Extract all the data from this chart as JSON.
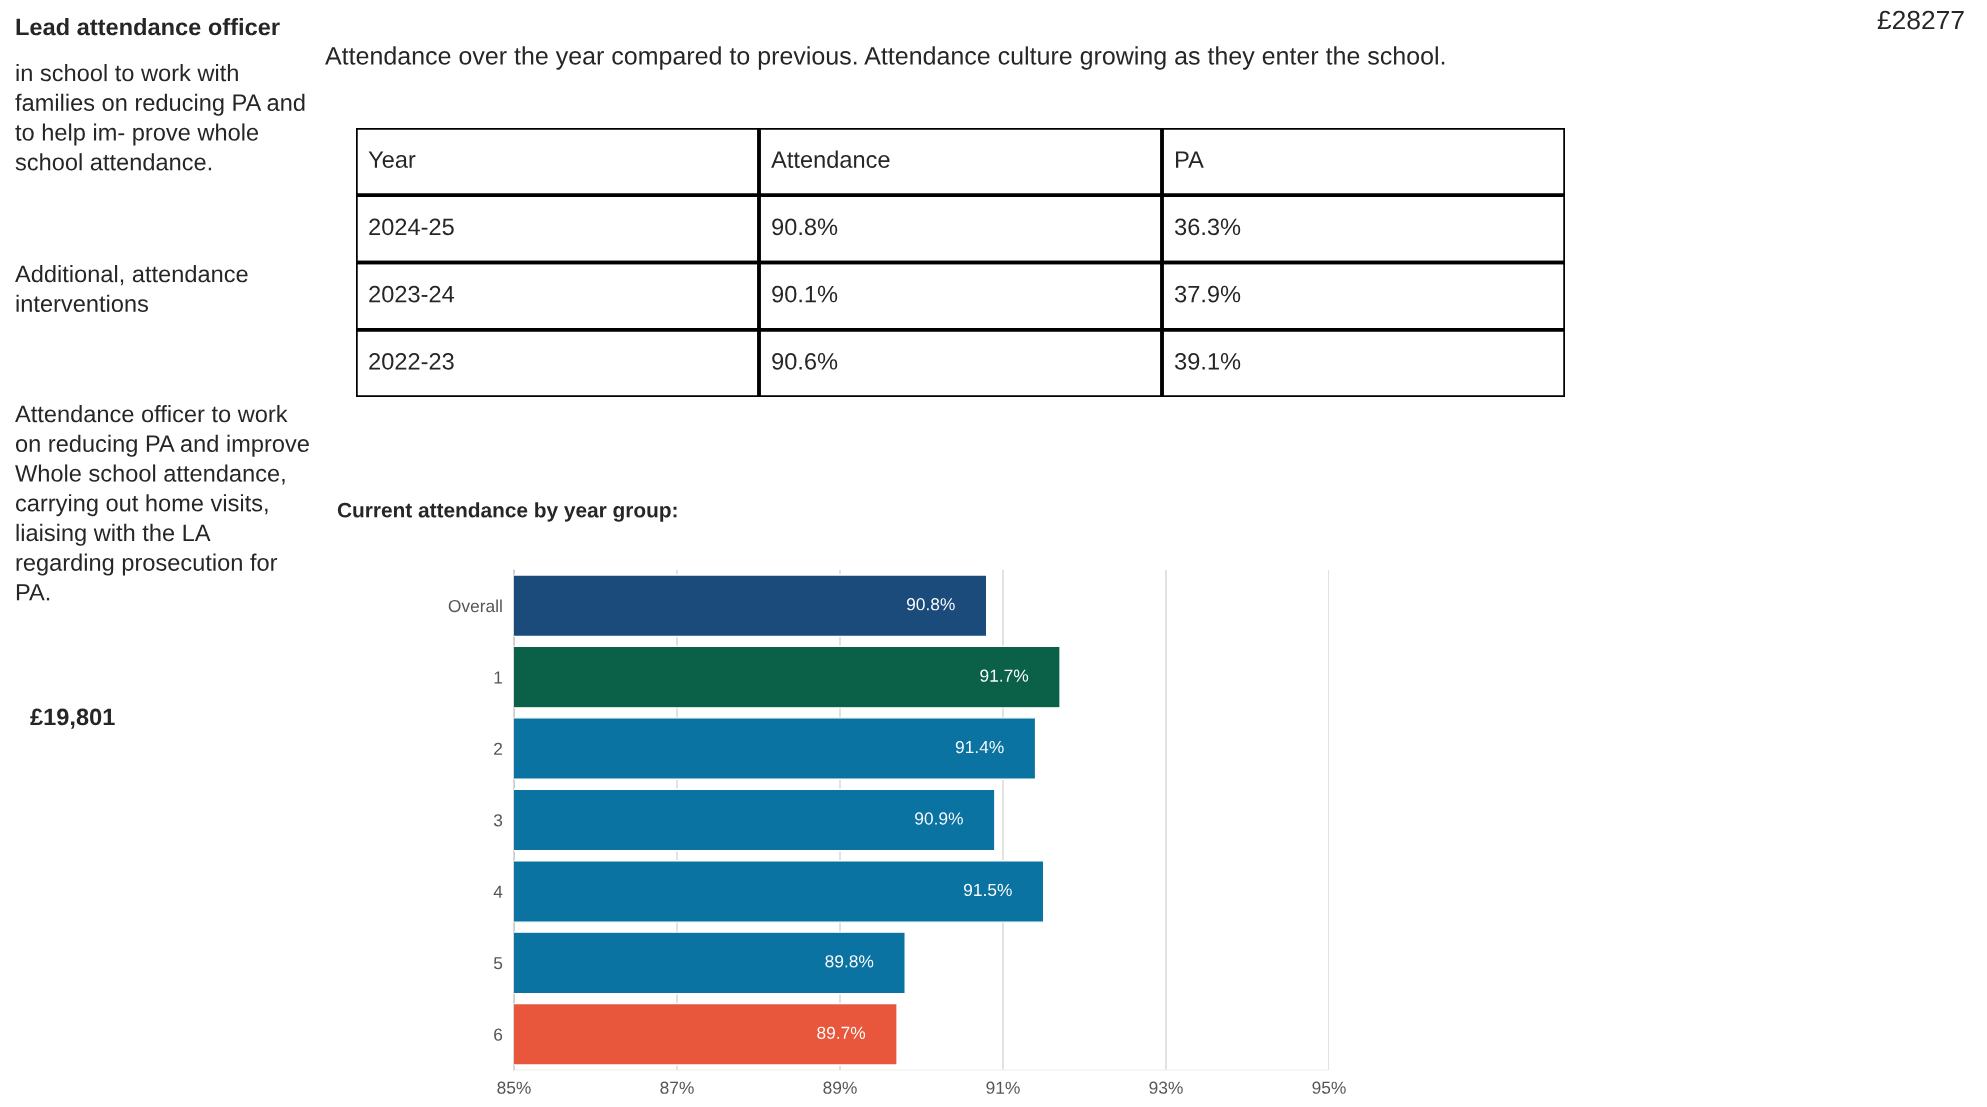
{
  "chart_data": [
    {
      "type": "other",
      "title": "Lead attendance officer",
      "annotations": [
        "in school to work with families on reducing PA and to help im- prove whole school attendance.",
        "Additional, attendance interventions",
        "Attendance officer to work on reducing PA and improve Whole school attendance, carrying out home visits, liaising with the LA regarding prosecution for PA.",
        "£19,801",
        "£28277"
      ]
    },
    {
      "type": "other",
      "title": "Attendance over the year compared to previous. Attendance culture growing as they enter the school.",
      "annotations": [
        "Year",
        "Attendance",
        "PA",
        "2024-25",
        "90.8%",
        "36.3%",
        "2023-24",
        "90.1%",
        "37.9%",
        "2022-23",
        "90.6%",
        "39.1%"
      ]
    },
    {
      "type": "bar",
      "orientation": "horizontal",
      "title": "Current attendance by year group:",
      "categories": [
        "Overall",
        "1",
        "2",
        "3",
        "4",
        "5",
        "6"
      ],
      "values": [
        90.8,
        91.7,
        91.4,
        90.9,
        91.5,
        89.8,
        89.7
      ],
      "colors": [
        "#1b4b7b",
        "#0b6148",
        "#0a73a1",
        "#0a73a1",
        "#0a73a1",
        "#0a73a1",
        "#e8573c"
      ],
      "value_labels": [
        "90.8%",
        "91.7%",
        "91.4%",
        "90.9%",
        "91.5%",
        "89.8%",
        "89.7%"
      ],
      "xlim": [
        85,
        95
      ],
      "xticks": [
        {
          "value": 85,
          "label": "85%"
        },
        {
          "value": 87,
          "label": "87%"
        },
        {
          "value": 89,
          "label": "89%"
        },
        {
          "value": 91,
          "label": "91%"
        },
        {
          "value": 93,
          "label": "93%"
        },
        {
          "value": 95,
          "label": "95%"
        }
      ],
      "grid": "x"
    }
  ]
}
